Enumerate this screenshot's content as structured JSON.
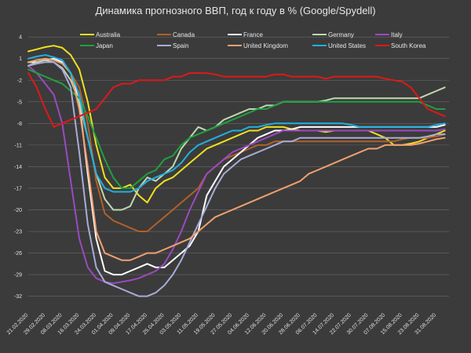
{
  "chart_data": {
    "type": "line",
    "title": "Динамика прогнозного ВВП, год к году в % (Google/Spydell)",
    "xlabel": "",
    "ylabel": "",
    "ylim": [
      -34,
      5
    ],
    "yticks": [
      4,
      1,
      -2,
      -5,
      -8,
      -11,
      -14,
      -17,
      -20,
      -23,
      -26,
      -29,
      -32
    ],
    "grid": "horizontal",
    "legend_position": "top",
    "x_tick_labels": [
      "21.02.2020",
      "29.02.2020",
      "08.03.2020",
      "16.03.2020",
      "24.03.2020",
      "01.04.2020",
      "09.04.2020",
      "17.04.2020",
      "25.04.2020",
      "03.05.2020",
      "11.05.2020",
      "19.05.2020",
      "27.05.2020",
      "04.06.2020",
      "12.06.2020",
      "20.06.2020",
      "28.06.2020",
      "06.07.2020",
      "14.07.2020",
      "22.07.2020",
      "30.07.2020",
      "07.08.2020",
      "15.08.2020",
      "23.08.2020",
      "31.08.2020"
    ],
    "x_days": [
      0,
      8,
      16,
      24,
      32,
      40,
      48,
      56,
      64,
      72,
      80,
      88,
      96,
      104,
      112,
      120,
      128,
      136,
      144,
      152,
      160,
      168,
      176,
      184,
      192
    ],
    "x": [
      0,
      4,
      8,
      12,
      16,
      20,
      24,
      28,
      32,
      36,
      40,
      44,
      48,
      52,
      56,
      60,
      64,
      68,
      72,
      76,
      80,
      84,
      88,
      92,
      96,
      100,
      104,
      108,
      112,
      116,
      120,
      124,
      128,
      132,
      136,
      140,
      144,
      148,
      152,
      156,
      160,
      164,
      168,
      172,
      176,
      180,
      184,
      188,
      192,
      196
    ],
    "series": [
      {
        "name": "Australia",
        "color": "#f0e020",
        "values": [
          2,
          2.3,
          2.6,
          2.8,
          2.5,
          1.5,
          -0.5,
          -5,
          -11,
          -15.5,
          -17,
          -17,
          -16.5,
          -18,
          -19,
          -17,
          -16,
          -15.5,
          -14.5,
          -13.5,
          -12.5,
          -11.5,
          -11,
          -10.5,
          -10,
          -9.5,
          -9,
          -9,
          -8.5,
          -8.5,
          -8.5,
          -8.8,
          -9,
          -9,
          -9,
          -9.2,
          -9,
          -9,
          -9,
          -9,
          -9,
          -9.5,
          -10,
          -11,
          -11,
          -10.8,
          -10.5,
          -10,
          -9.5,
          -9
        ]
      },
      {
        "name": "Canada",
        "color": "#b0602a",
        "values": [
          0.5,
          0.8,
          1,
          0.8,
          0.3,
          -1,
          -3,
          -8,
          -16,
          -20.5,
          -21.5,
          -22,
          -22.5,
          -23,
          -23,
          -22,
          -21,
          -20,
          -19,
          -18,
          -17,
          -15,
          -14,
          -13,
          -12.5,
          -12,
          -11.5,
          -11,
          -11,
          -10.5,
          -10.5,
          -10.5,
          -10.5,
          -10.5,
          -10.5,
          -10.5,
          -10.5,
          -10.5,
          -10.5,
          -10.5,
          -10.5,
          -10.5,
          -10.5,
          -10.5,
          -10.2,
          -10,
          -10,
          -10,
          -9.8,
          -9.5
        ]
      },
      {
        "name": "France",
        "color": "#ffffff",
        "values": [
          0.5,
          0.5,
          0.8,
          1,
          0.5,
          -1,
          -5,
          -15,
          -24,
          -28.5,
          -29,
          -29,
          -28.5,
          -28,
          -27.5,
          -28,
          -28,
          -27,
          -26,
          -25,
          -23,
          -18,
          -16,
          -14,
          -13,
          -12,
          -11,
          -10,
          -9.5,
          -9,
          -9,
          -8.8,
          -8.5,
          -8.5,
          -8.5,
          -8.5,
          -8.5,
          -8.5,
          -8.5,
          -8.5,
          -8.5,
          -8.5,
          -8.5,
          -8.5,
          -8.5,
          -8.5,
          -8.5,
          -8.5,
          -8.5,
          -8.2
        ]
      },
      {
        "name": "Germany",
        "color": "#c0d8b0",
        "values": [
          0,
          0.5,
          0.8,
          0.5,
          -0.3,
          -2,
          -5,
          -10,
          -15,
          -18.5,
          -20,
          -20,
          -19.5,
          -17,
          -15.5,
          -16,
          -15,
          -14,
          -11.5,
          -10,
          -8.5,
          -9,
          -8.5,
          -7.5,
          -7,
          -6.5,
          -6,
          -6,
          -5.5,
          -5.5,
          -5,
          -5,
          -5,
          -5,
          -5,
          -4.8,
          -4.5,
          -4.5,
          -4.5,
          -4.5,
          -4.5,
          -4.5,
          -4.5,
          -4.5,
          -4.5,
          -4.5,
          -4.5,
          -4,
          -3.5,
          -3
        ]
      },
      {
        "name": "Italy",
        "color": "#9a4ac0",
        "values": [
          0,
          -1,
          -2.5,
          -4,
          -8,
          -16,
          -24,
          -28,
          -29.5,
          -30,
          -30.2,
          -30,
          -29.8,
          -29.5,
          -29,
          -28.5,
          -27.5,
          -25.5,
          -23,
          -20,
          -17.5,
          -15,
          -14,
          -13,
          -12,
          -11.5,
          -11,
          -10.5,
          -10,
          -9.5,
          -9,
          -9,
          -9,
          -9,
          -9,
          -9,
          -9,
          -9,
          -9,
          -9,
          -9,
          -9,
          -9,
          -9,
          -9,
          -9,
          -9,
          -9,
          -9,
          -8.8
        ]
      },
      {
        "name": "Japan",
        "color": "#20a040",
        "values": [
          -0.5,
          -1,
          -1.5,
          -2,
          -2.5,
          -3.5,
          -4.5,
          -7,
          -10,
          -13,
          -15.5,
          -17,
          -17,
          -16,
          -15,
          -14.5,
          -13,
          -12.5,
          -11,
          -10,
          -9.5,
          -9,
          -8.5,
          -8,
          -7.5,
          -7,
          -6.5,
          -6,
          -6,
          -5.5,
          -5,
          -5,
          -5,
          -5,
          -5,
          -5,
          -5,
          -5,
          -5,
          -5,
          -5,
          -5,
          -5,
          -5,
          -5,
          -5,
          -5,
          -5.5,
          -6,
          -6
        ]
      },
      {
        "name": "Spain",
        "color": "#a8acd8",
        "values": [
          0,
          0.3,
          0.5,
          0.5,
          -0.5,
          -3,
          -12,
          -22,
          -28,
          -30,
          -30.5,
          -31,
          -31.5,
          -32,
          -32,
          -31.5,
          -30.5,
          -29,
          -27,
          -24.5,
          -22,
          -19.5,
          -17,
          -15,
          -14,
          -13,
          -12.5,
          -12,
          -11.5,
          -11,
          -10.5,
          -10.5,
          -10,
          -10,
          -10,
          -10,
          -10,
          -10,
          -10,
          -10,
          -10,
          -10,
          -10,
          -10,
          -10,
          -10,
          -10,
          -9.8,
          -9.5,
          -9.5
        ]
      },
      {
        "name": "United Kingdom",
        "color": "#f0a070",
        "values": [
          0.5,
          0.8,
          1,
          0.8,
          0.3,
          -1,
          -6,
          -14,
          -23,
          -26,
          -26.5,
          -27,
          -27,
          -26.5,
          -26,
          -26,
          -25.5,
          -25,
          -24.5,
          -24,
          -23,
          -22,
          -21,
          -20.5,
          -20,
          -19.5,
          -19,
          -18.5,
          -18,
          -17.5,
          -17,
          -16.5,
          -16,
          -15,
          -14.5,
          -14,
          -13.5,
          -13,
          -12.5,
          -12,
          -11.5,
          -11.5,
          -11,
          -11,
          -11,
          -11,
          -10.8,
          -10.5,
          -10.2,
          -10
        ]
      },
      {
        "name": "United States",
        "color": "#20b0e0",
        "values": [
          1,
          1.3,
          1.5,
          1.2,
          0.8,
          -1,
          -4,
          -10,
          -15,
          -17,
          -17.5,
          -17.5,
          -17.5,
          -17,
          -16,
          -15.5,
          -15,
          -14.5,
          -13.5,
          -12,
          -11,
          -10.5,
          -10,
          -9.5,
          -9,
          -9,
          -8.5,
          -8.5,
          -8.2,
          -8,
          -8,
          -8,
          -8,
          -8,
          -8,
          -8,
          -8,
          -8,
          -8.2,
          -8.5,
          -8.5,
          -8.5,
          -8.5,
          -8.5,
          -8.5,
          -8.5,
          -8.5,
          -8.5,
          -8.2,
          -8
        ]
      },
      {
        "name": "South Korea",
        "color": "#e01818",
        "values": [
          -1,
          -3,
          -6,
          -8.5,
          -8,
          -7.5,
          -7,
          -6.5,
          -6,
          -4.5,
          -3,
          -2.5,
          -2.5,
          -2,
          -2,
          -2,
          -2,
          -1.5,
          -1.5,
          -1,
          -1,
          -1,
          -1.2,
          -1.5,
          -1.5,
          -1.5,
          -1.5,
          -1.5,
          -1.5,
          -1.2,
          -1.2,
          -1.5,
          -1.5,
          -1.5,
          -1.5,
          -1.8,
          -1.5,
          -1.5,
          -1.5,
          -1.5,
          -1.5,
          -1.5,
          -1.8,
          -2,
          -2.2,
          -3,
          -4.5,
          -6,
          -6.5,
          -7
        ]
      }
    ]
  }
}
